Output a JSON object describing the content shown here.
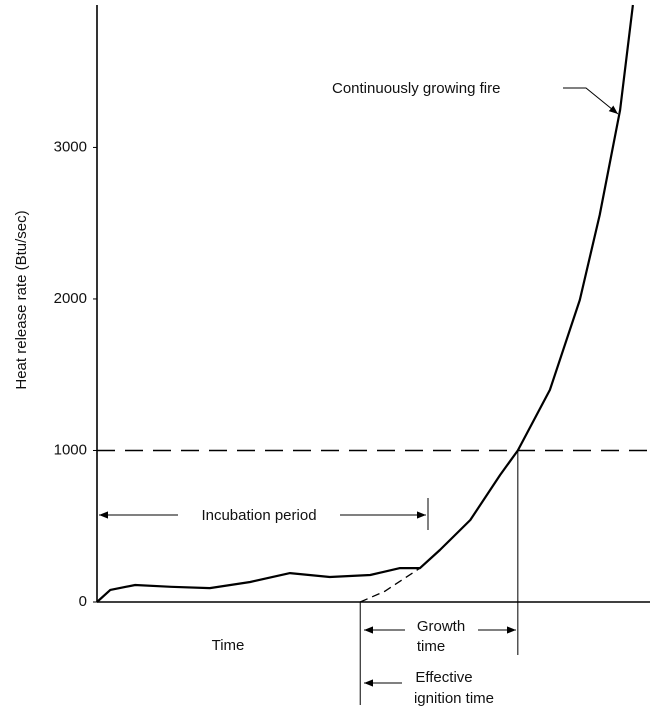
{
  "chart_data": {
    "type": "line",
    "y_label": "Heat release rate (Btu/sec)",
    "x_label": "Time",
    "ylim": [
      0,
      3940
    ],
    "yticks": [
      0,
      1000,
      2000,
      3000
    ],
    "xlim": [
      0,
      100
    ],
    "xticks": [],
    "reference_line": 1000,
    "series": [
      {
        "color": "#000000",
        "style": "solid",
        "x": [
          0,
          2.4,
          6.9,
          13.4,
          20.4,
          27.7,
          34.9,
          42.1,
          49.4,
          54.8,
          58.4,
          62,
          67.5,
          72.9,
          76.1,
          81.9,
          87.3,
          90.9,
          94.6,
          96.9
        ],
        "values": [
          0,
          80,
          112,
          100,
          92,
          132,
          191,
          165,
          178,
          224,
          224,
          343,
          541,
          838,
          1000,
          1400,
          1993,
          2554,
          3247,
          3940
        ]
      },
      {
        "color": "#000000",
        "style": "dashed",
        "x": [
          47.6,
          52,
          58.4
        ],
        "values": [
          0,
          70,
          224
        ]
      }
    ],
    "annotations": {
      "fire": "Continuously growing fire",
      "incubation": "Incubation period",
      "growth": [
        "Growth",
        "time"
      ],
      "ignition": [
        "Effective",
        "ignition time"
      ]
    }
  }
}
